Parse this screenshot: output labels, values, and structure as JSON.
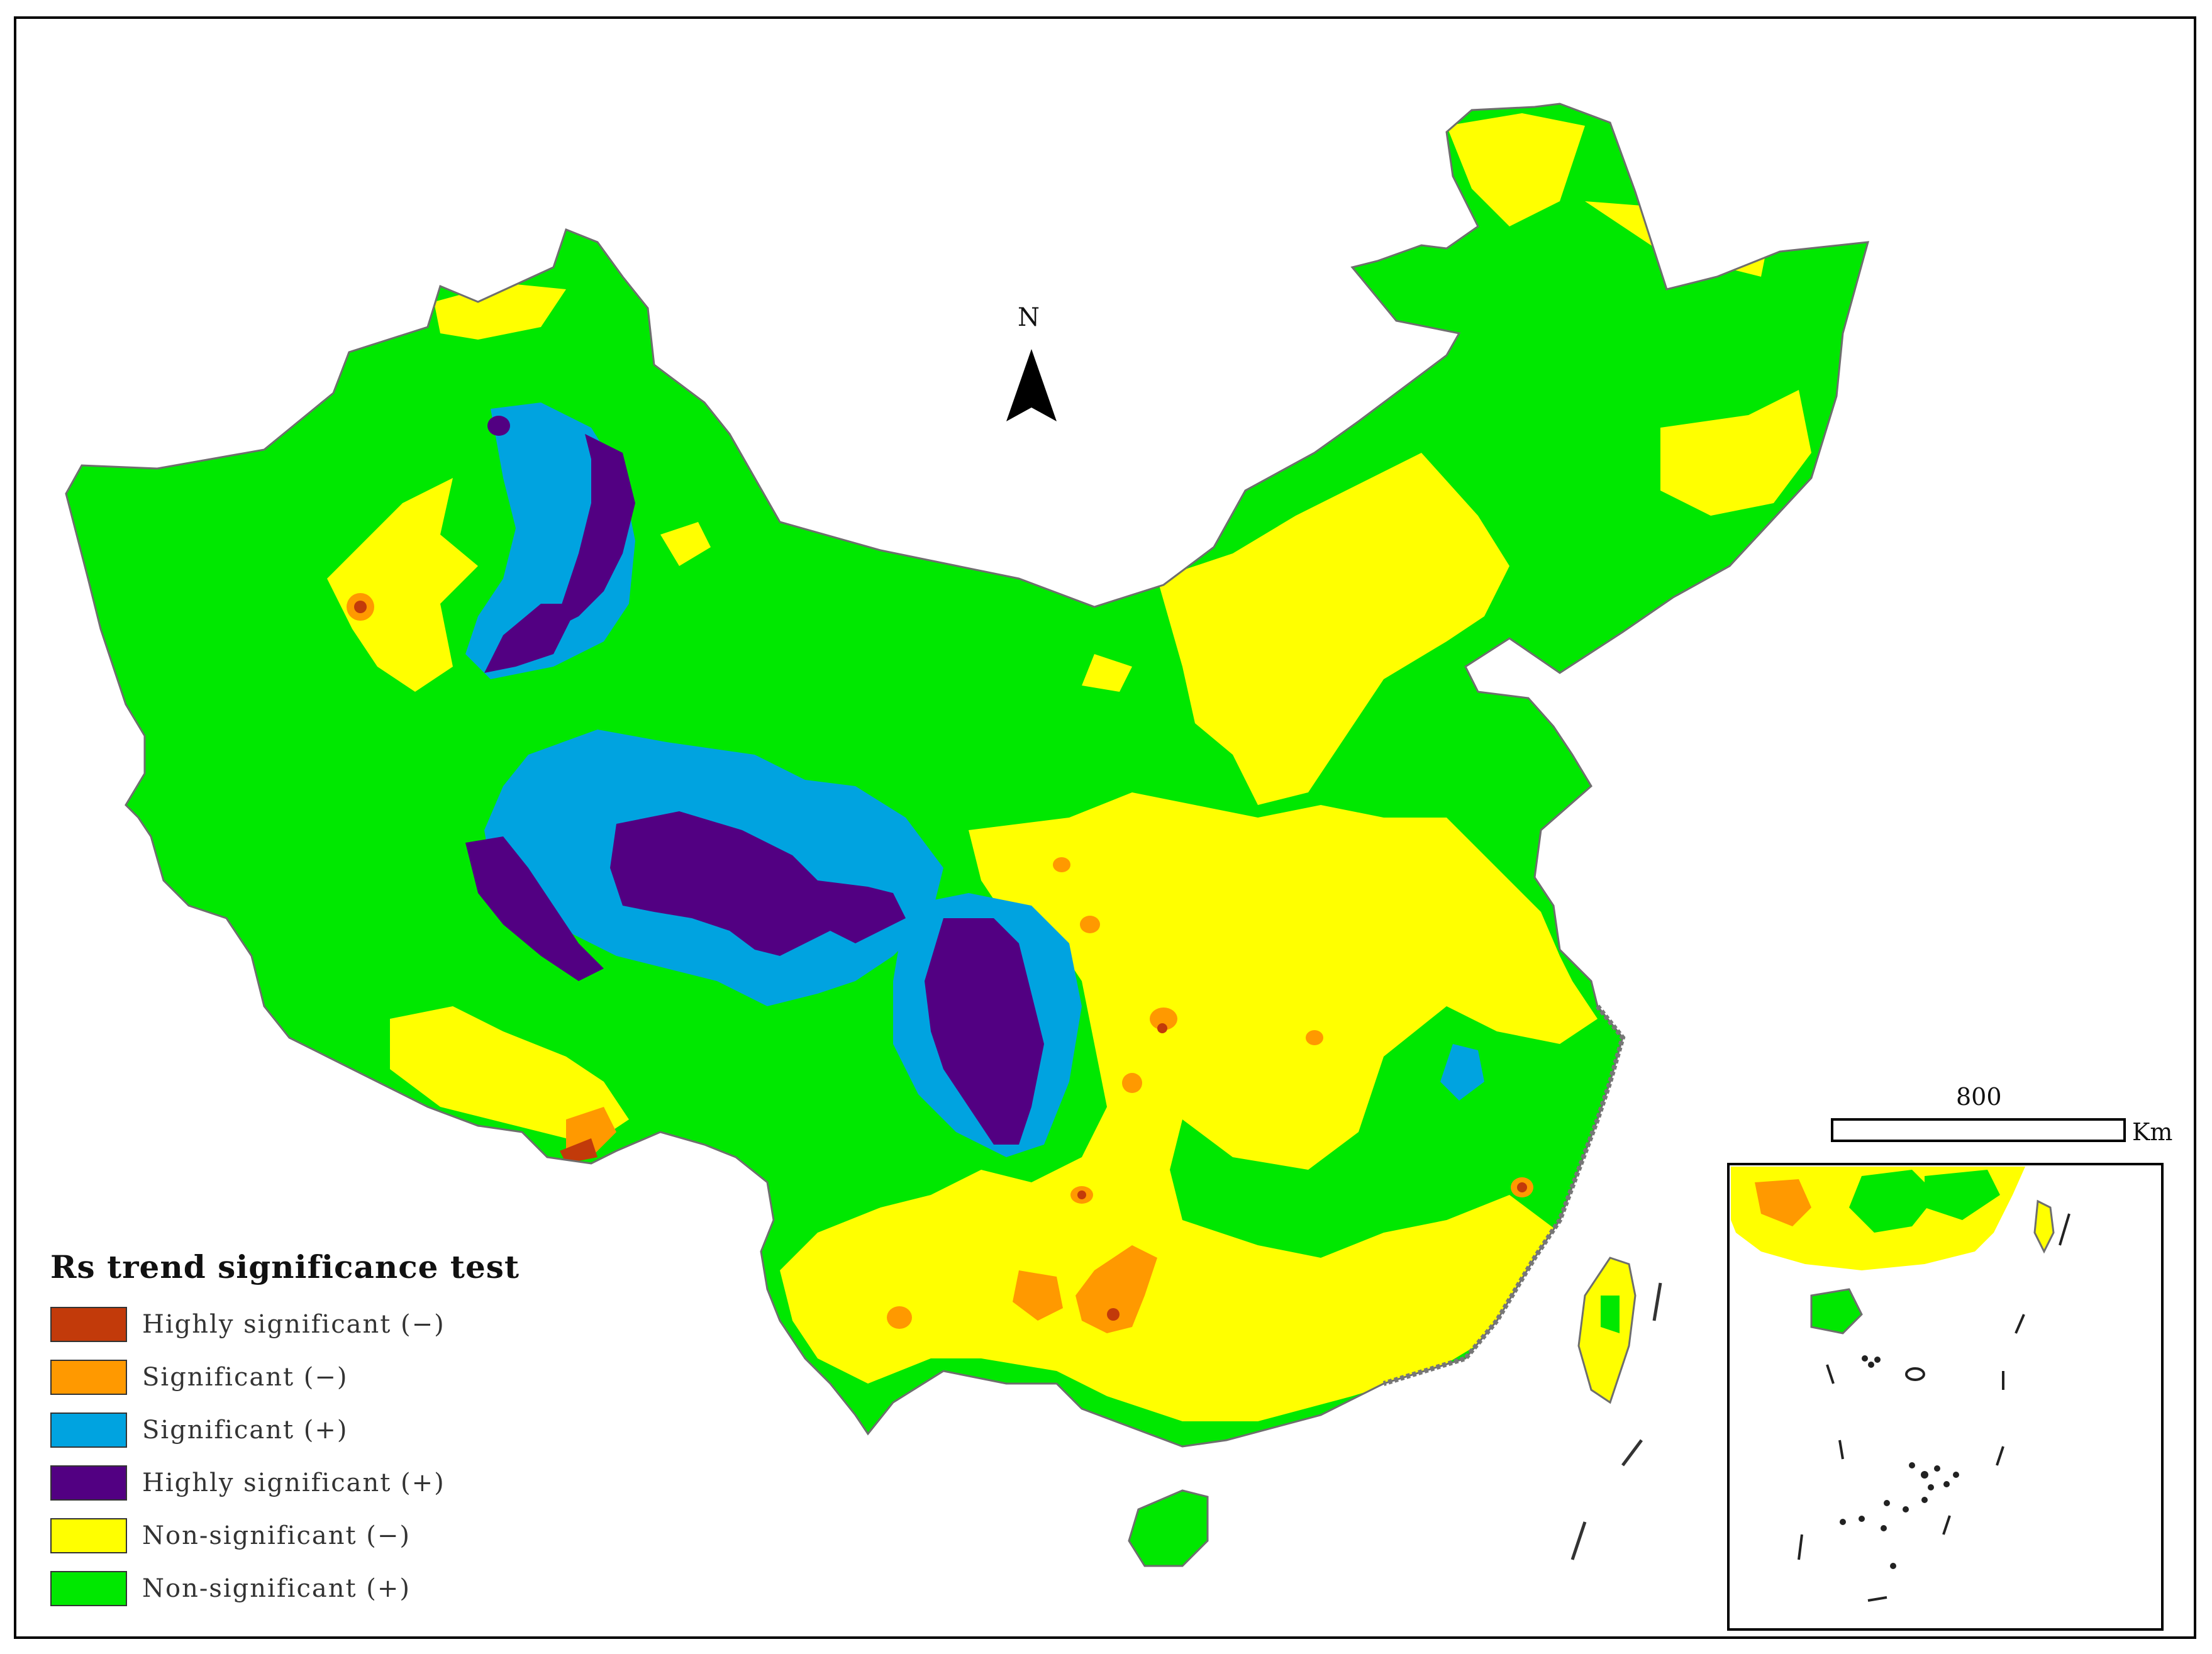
{
  "map": {
    "north_label": "N",
    "scale": {
      "value_label": "800",
      "unit_label": "Km"
    }
  },
  "legend": {
    "title": "Rs trend significance test",
    "items": [
      {
        "label": "Highly significant (−)",
        "color": "#c23a0a"
      },
      {
        "label": "Significant (−)",
        "color": "#ff9900"
      },
      {
        "label": "Significant (+)",
        "color": "#00a3e0"
      },
      {
        "label": "Highly significant (+)",
        "color": "#520082"
      },
      {
        "label": "Non-significant (−)",
        "color": "#ffff00"
      },
      {
        "label": "Non-significant (+)",
        "color": "#00e800"
      }
    ]
  }
}
